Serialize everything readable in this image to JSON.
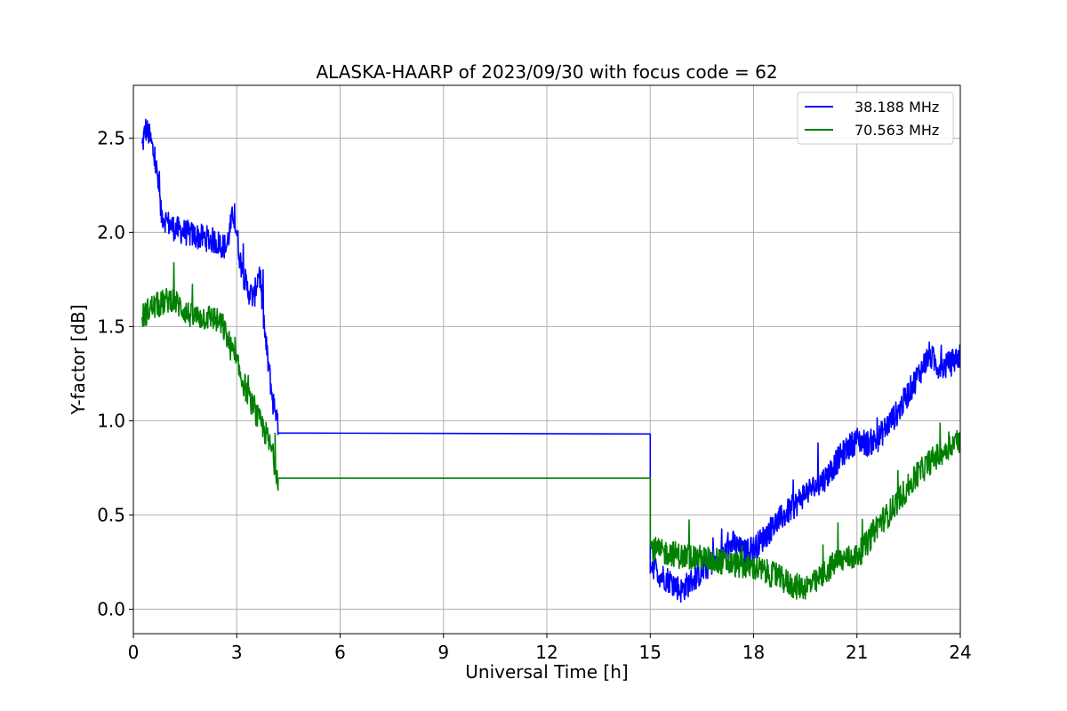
{
  "chart_data": {
    "type": "line",
    "title": "ALASKA-HAARP of 2023/09/30 with focus code = 62",
    "xlabel": "Universal Time [h]",
    "ylabel": "Y-factor [dB]",
    "xlim": [
      0,
      24
    ],
    "ylim": [
      -0.13,
      2.78
    ],
    "xticks": [
      0,
      3,
      6,
      9,
      12,
      15,
      18,
      21,
      24
    ],
    "xtick_labels": [
      "0",
      "3",
      "6",
      "9",
      "12",
      "15",
      "18",
      "21",
      "24"
    ],
    "yticks": [
      0.0,
      0.5,
      1.0,
      1.5,
      2.0,
      2.5
    ],
    "ytick_labels": [
      "0.0",
      "0.5",
      "1.0",
      "1.5",
      "2.0",
      "2.5"
    ],
    "grid": true,
    "legend_position": "top-right",
    "series": [
      {
        "name": "38.188 MHz",
        "color": "#0000ff",
        "x": [
          0.25,
          0.35,
          0.45,
          0.55,
          0.7,
          0.8,
          1.0,
          1.2,
          1.5,
          1.8,
          2.1,
          2.4,
          2.7,
          2.9,
          3.0,
          3.1,
          3.3,
          3.5,
          3.65,
          3.75,
          3.85,
          3.95,
          4.05,
          4.15,
          4.2,
          15.0,
          15.0,
          15.3,
          15.6,
          15.9,
          16.2,
          16.5,
          16.8,
          17.1,
          17.4,
          17.7,
          18.0,
          18.3,
          18.6,
          18.9,
          19.2,
          19.5,
          19.8,
          20.1,
          20.4,
          20.7,
          21.0,
          21.3,
          21.6,
          21.9,
          22.2,
          22.5,
          22.8,
          23.1,
          23.4,
          23.7,
          24.0
        ],
        "y": [
          2.45,
          2.55,
          2.52,
          2.45,
          2.3,
          2.1,
          2.05,
          2.02,
          2.0,
          1.98,
          1.97,
          1.95,
          1.92,
          2.1,
          2.0,
          1.85,
          1.7,
          1.65,
          1.8,
          1.6,
          1.4,
          1.25,
          1.1,
          1.05,
          0.94,
          0.93,
          0.25,
          0.18,
          0.15,
          0.1,
          0.15,
          0.2,
          0.25,
          0.28,
          0.35,
          0.3,
          0.32,
          0.38,
          0.45,
          0.5,
          0.55,
          0.62,
          0.65,
          0.7,
          0.78,
          0.85,
          0.9,
          0.88,
          0.9,
          0.98,
          1.05,
          1.15,
          1.25,
          1.35,
          1.28,
          1.3,
          1.35
        ],
        "noise": 0.07,
        "segment_const": [
          4.2,
          15.0,
          0.935,
          0.93
        ]
      },
      {
        "name": "70.563 MHz",
        "color": "#008000",
        "x": [
          0.25,
          0.5,
          0.8,
          1.1,
          1.4,
          1.7,
          2.0,
          2.3,
          2.6,
          2.9,
          3.2,
          3.5,
          3.8,
          4.0,
          4.2,
          15.0,
          15.0,
          15.3,
          15.6,
          15.9,
          16.2,
          16.5,
          16.8,
          17.1,
          17.4,
          17.7,
          18.0,
          18.3,
          18.6,
          18.9,
          19.2,
          19.5,
          19.8,
          20.1,
          20.4,
          20.7,
          21.0,
          21.3,
          21.6,
          21.9,
          22.2,
          22.5,
          22.8,
          23.1,
          23.4,
          23.7,
          24.0
        ],
        "y": [
          1.55,
          1.6,
          1.62,
          1.65,
          1.6,
          1.55,
          1.55,
          1.55,
          1.5,
          1.35,
          1.2,
          1.05,
          0.95,
          0.85,
          0.7,
          0.7,
          0.33,
          0.3,
          0.3,
          0.28,
          0.28,
          0.27,
          0.26,
          0.25,
          0.24,
          0.23,
          0.22,
          0.2,
          0.18,
          0.15,
          0.12,
          0.12,
          0.14,
          0.2,
          0.25,
          0.27,
          0.28,
          0.35,
          0.45,
          0.5,
          0.58,
          0.65,
          0.72,
          0.78,
          0.82,
          0.87,
          0.9
        ],
        "noise": 0.07,
        "segment_const": [
          4.2,
          15.0,
          0.695,
          0.695
        ]
      }
    ]
  }
}
